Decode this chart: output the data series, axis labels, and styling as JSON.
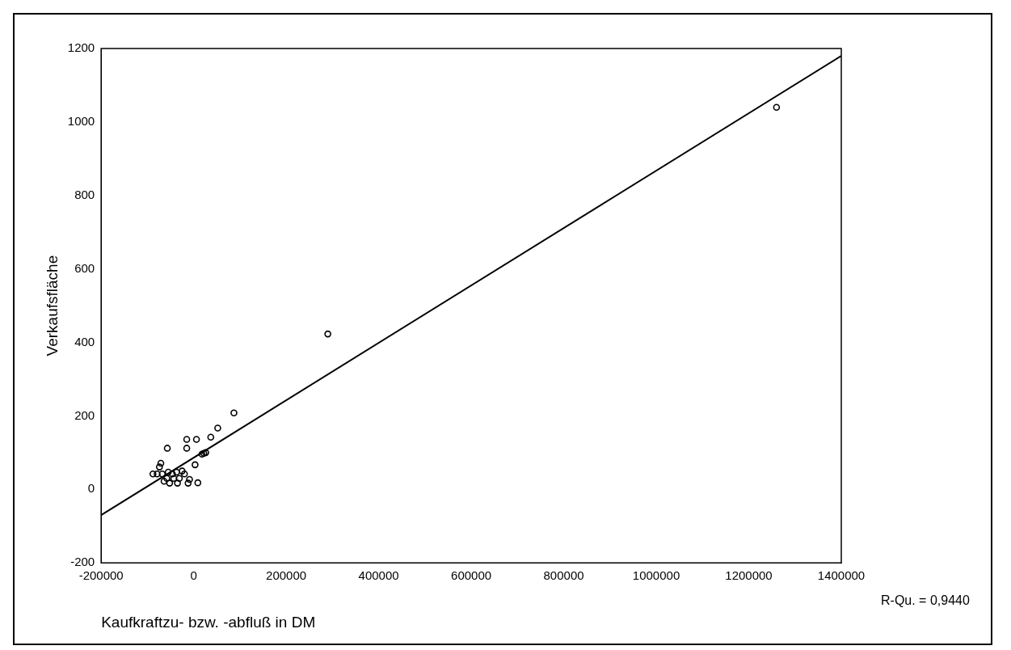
{
  "chart_data": {
    "type": "scatter",
    "xlabel": "Kaufkraftzu- bzw. -abfluß in DM",
    "ylabel": "Verkaufsfläche",
    "annotations": [
      "R-Qu. = 0,9440"
    ],
    "xlim": [
      -200000,
      1400000
    ],
    "xticks": [
      -200000,
      0,
      200000,
      400000,
      600000,
      800000,
      1000000,
      1200000,
      1400000
    ],
    "ylim": [
      -200,
      1200
    ],
    "yticks": [
      -200,
      0,
      200,
      400,
      600,
      800,
      1000,
      1200
    ],
    "grid": false,
    "legend": false,
    "marker": "circle",
    "series": [
      {
        "color": "#000000",
        "x": [
          1260000,
          290000,
          87000,
          52000,
          37000,
          6000,
          -15000,
          -15000,
          -57000,
          18000,
          22000,
          26000,
          3000,
          -71000,
          -74000,
          -88000,
          -79000,
          -68000,
          -55000,
          -46000,
          -37000,
          -25000,
          -20000,
          -64000,
          -52000,
          -35000,
          -43000,
          -31000,
          -9000,
          -12000,
          9000,
          -58000
        ],
        "values": [
          1040,
          423,
          208,
          167,
          142,
          136,
          136,
          112,
          112,
          96,
          98,
          100,
          67,
          71,
          61,
          42,
          42,
          42,
          47,
          42,
          47,
          50,
          42,
          22,
          17,
          17,
          30,
          30,
          27,
          17,
          18,
          30
        ]
      },
      {
        "type": "line",
        "color": "#000000",
        "marker": "none",
        "x": [
          -200000,
          1400000
        ],
        "values": [
          -70,
          1180
        ]
      }
    ]
  }
}
